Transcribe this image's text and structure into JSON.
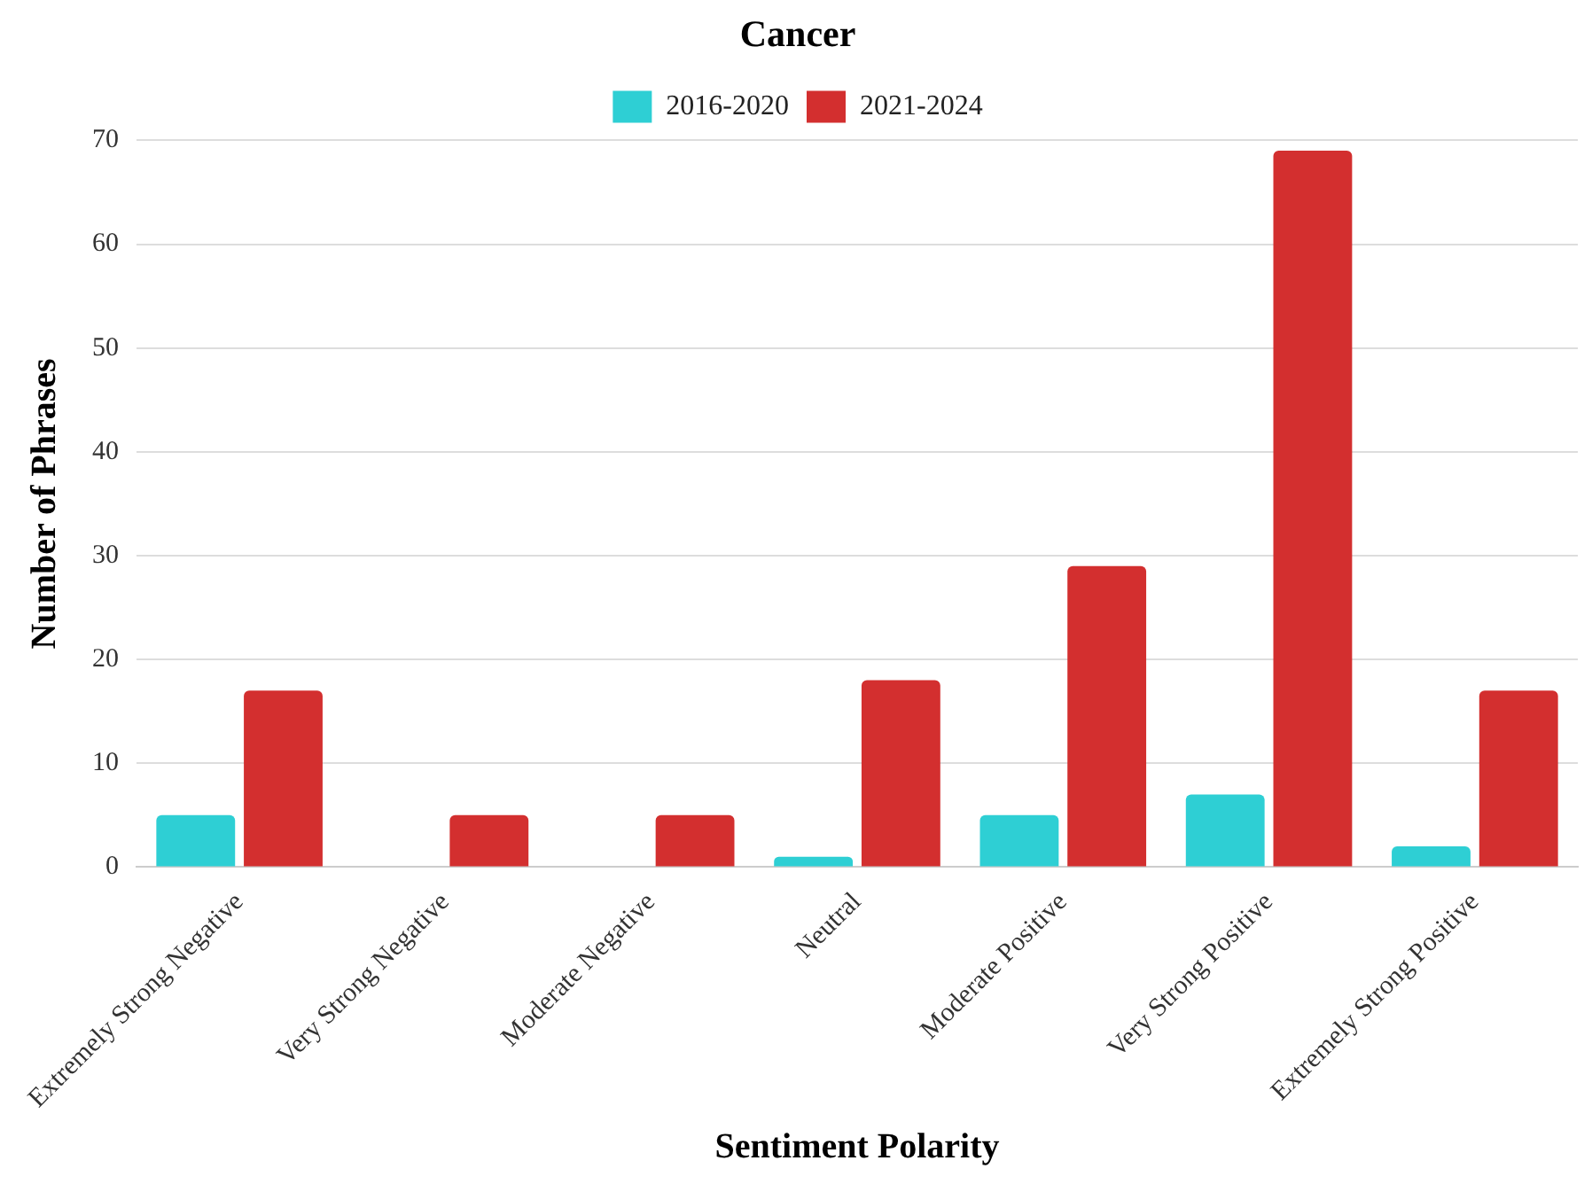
{
  "chart_data": {
    "type": "bar",
    "title": "Cancer",
    "xlabel": "Sentiment Polarity",
    "ylabel": "Number of Phrases",
    "categories": [
      "Extremely Strong Negative",
      "Very Strong Negative",
      "Moderate Negative",
      "Neutral",
      "Moderate Positive",
      "Very Strong Positive",
      "Extremely Strong Positive"
    ],
    "series": [
      {
        "name": "2016-2020",
        "color": "#2ecfd4",
        "values": [
          5,
          0,
          0,
          1,
          5,
          7,
          2
        ]
      },
      {
        "name": "2021-2024",
        "color": "#d32f2f",
        "values": [
          17,
          5,
          5,
          18,
          29,
          69,
          17
        ]
      }
    ],
    "ylim": [
      0,
      70
    ],
    "yticks": [
      0,
      10,
      20,
      30,
      40,
      50,
      60,
      70
    ],
    "grid": "y",
    "legend": "top"
  }
}
